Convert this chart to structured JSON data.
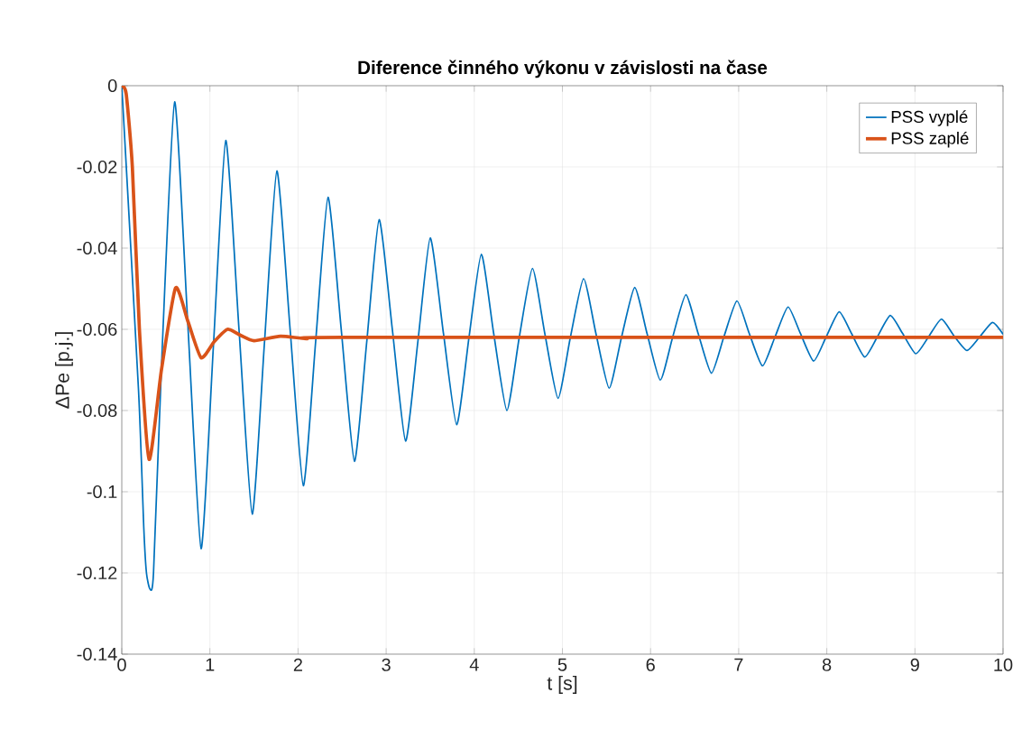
{
  "chart_data": {
    "type": "line",
    "title": "Diference činného výkonu v závislosti na čase",
    "xlabel": "t [s]",
    "ylabel": "ΔPe [p.j.]",
    "xlim": [
      0,
      10
    ],
    "ylim": [
      -0.14,
      0
    ],
    "xticks": [
      0,
      1,
      2,
      3,
      4,
      5,
      6,
      7,
      8,
      9,
      10
    ],
    "yticks": [
      -0.14,
      -0.12,
      -0.1,
      -0.08,
      -0.06,
      -0.04,
      -0.02,
      0
    ],
    "grid": true,
    "legend": "top right",
    "series": [
      {
        "name": "PSS vyplé",
        "color": "#0072bd",
        "x": [
          0,
          0.19,
          0.25,
          0.28,
          0.32,
          0.36,
          0.46,
          0.6,
          0.75,
          0.9,
          1.04,
          1.18,
          1.33,
          1.48,
          1.62,
          1.76,
          1.91,
          2.06,
          2.2,
          2.34,
          2.49,
          2.64,
          2.78,
          2.92,
          3.07,
          3.22,
          3.36,
          3.5,
          3.65,
          3.8,
          3.94,
          4.08,
          4.22,
          4.37,
          4.51,
          4.66,
          4.8,
          4.95,
          5.09,
          5.24,
          5.38,
          5.53,
          5.67,
          5.82,
          5.96,
          6.11,
          6.25,
          6.4,
          6.54,
          6.69,
          6.83,
          6.98,
          7.12,
          7.27,
          7.41,
          7.56,
          7.7,
          7.85,
          7.99,
          8.14,
          8.28,
          8.43,
          8.57,
          8.72,
          8.86,
          9.01,
          9.15,
          9.3,
          9.44,
          9.59,
          9.73,
          9.88,
          10
        ],
        "values": [
          0,
          -0.075,
          -0.109,
          -0.12,
          -0.124,
          -0.12,
          -0.064,
          -0.004,
          -0.059,
          -0.114,
          -0.064,
          -0.0135,
          -0.06,
          -0.1055,
          -0.063,
          -0.021,
          -0.06,
          -0.0985,
          -0.063,
          -0.0275,
          -0.06,
          -0.0925,
          -0.063,
          -0.033,
          -0.06,
          -0.0875,
          -0.063,
          -0.0375,
          -0.061,
          -0.0835,
          -0.062,
          -0.0415,
          -0.061,
          -0.08,
          -0.062,
          -0.045,
          -0.061,
          -0.077,
          -0.062,
          -0.0475,
          -0.061,
          -0.0745,
          -0.062,
          -0.0497,
          -0.061,
          -0.0725,
          -0.062,
          -0.0515,
          -0.061,
          -0.0708,
          -0.062,
          -0.053,
          -0.061,
          -0.069,
          -0.062,
          -0.0545,
          -0.061,
          -0.0678,
          -0.062,
          -0.0557,
          -0.061,
          -0.0668,
          -0.062,
          -0.0566,
          -0.061,
          -0.066,
          -0.062,
          -0.0575,
          -0.0615,
          -0.0652,
          -0.062,
          -0.0583,
          -0.0612
        ]
      },
      {
        "name": "PSS zaplé",
        "color": "#d95319",
        "x": [
          0,
          0.05,
          0.12,
          0.2,
          0.31,
          0.45,
          0.61,
          0.75,
          0.9,
          1.05,
          1.2,
          1.35,
          1.5,
          1.8,
          2.1,
          2.5,
          10
        ],
        "values": [
          0,
          -0.002,
          -0.02,
          -0.06,
          -0.092,
          -0.07,
          -0.0498,
          -0.058,
          -0.067,
          -0.063,
          -0.06,
          -0.0615,
          -0.0628,
          -0.0617,
          -0.0623,
          -0.062,
          -0.062
        ]
      }
    ]
  }
}
